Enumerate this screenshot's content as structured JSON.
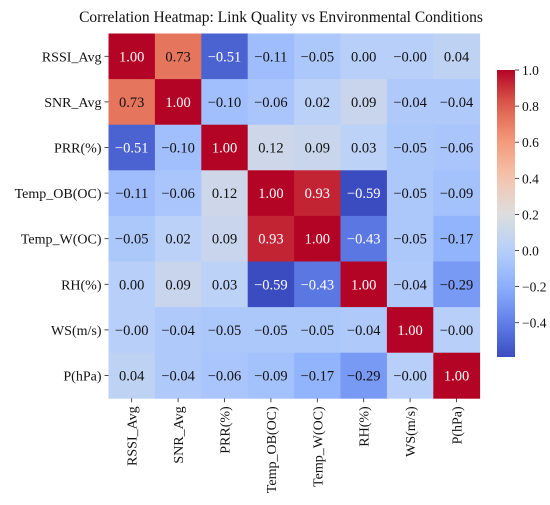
{
  "chart_data": {
    "type": "heatmap",
    "title": "Correlation Heatmap: Link Quality vs Environmental Conditions",
    "labels": [
      "RSSI_Avg",
      "SNR_Avg",
      "PRR(%)",
      "Temp_OB(OC)",
      "Temp_W(OC)",
      "RH(%)",
      "WS(m/s)",
      "P(hPa)"
    ],
    "matrix": [
      [
        1.0,
        0.73,
        -0.51,
        -0.11,
        -0.05,
        0.0,
        -0.0,
        0.04
      ],
      [
        0.73,
        1.0,
        -0.1,
        -0.06,
        0.02,
        0.09,
        -0.04,
        -0.04
      ],
      [
        -0.51,
        -0.1,
        1.0,
        0.12,
        0.09,
        0.03,
        -0.05,
        -0.06
      ],
      [
        -0.11,
        -0.06,
        0.12,
        1.0,
        0.93,
        -0.59,
        -0.05,
        -0.09
      ],
      [
        -0.05,
        0.02,
        0.09,
        0.93,
        1.0,
        -0.43,
        -0.05,
        -0.17
      ],
      [
        0.0,
        0.09,
        0.03,
        -0.59,
        -0.43,
        1.0,
        -0.04,
        -0.29
      ],
      [
        -0.0,
        -0.04,
        -0.05,
        -0.05,
        -0.05,
        -0.04,
        1.0,
        -0.0
      ],
      [
        0.04,
        -0.04,
        -0.06,
        -0.09,
        -0.17,
        -0.29,
        -0.0,
        1.0
      ]
    ],
    "cell_text": [
      [
        "1.00",
        "0.73",
        "−0.51",
        "−0.11",
        "−0.05",
        "0.00",
        "−0.00",
        "0.04"
      ],
      [
        "0.73",
        "1.00",
        "−0.10",
        "−0.06",
        "0.02",
        "0.09",
        "−0.04",
        "−0.04"
      ],
      [
        "−0.51",
        "−0.10",
        "1.00",
        "0.12",
        "0.09",
        "0.03",
        "−0.05",
        "−0.06"
      ],
      [
        "−0.11",
        "−0.06",
        "0.12",
        "1.00",
        "0.93",
        "−0.59",
        "−0.05",
        "−0.09"
      ],
      [
        "−0.05",
        "0.02",
        "0.09",
        "0.93",
        "1.00",
        "−0.43",
        "−0.05",
        "−0.17"
      ],
      [
        "0.00",
        "0.09",
        "0.03",
        "−0.59",
        "−0.43",
        "1.00",
        "−0.04",
        "−0.29"
      ],
      [
        "−0.00",
        "−0.04",
        "−0.05",
        "−0.05",
        "−0.05",
        "−0.04",
        "1.00",
        "−0.00"
      ],
      [
        "0.04",
        "−0.04",
        "−0.06",
        "−0.09",
        "−0.17",
        "−0.29",
        "−0.00",
        "1.00"
      ]
    ],
    "colorbar": {
      "vmin": -0.59,
      "vmax": 1.0,
      "ticks": [
        1.0,
        0.8,
        0.6,
        0.4,
        0.2,
        0.0,
        -0.2,
        -0.4
      ],
      "tick_labels": [
        "1.0",
        "0.8",
        "0.6",
        "0.4",
        "0.2",
        "0.0",
        "−0.2",
        "−0.4"
      ],
      "colormap": "coolwarm"
    }
  }
}
